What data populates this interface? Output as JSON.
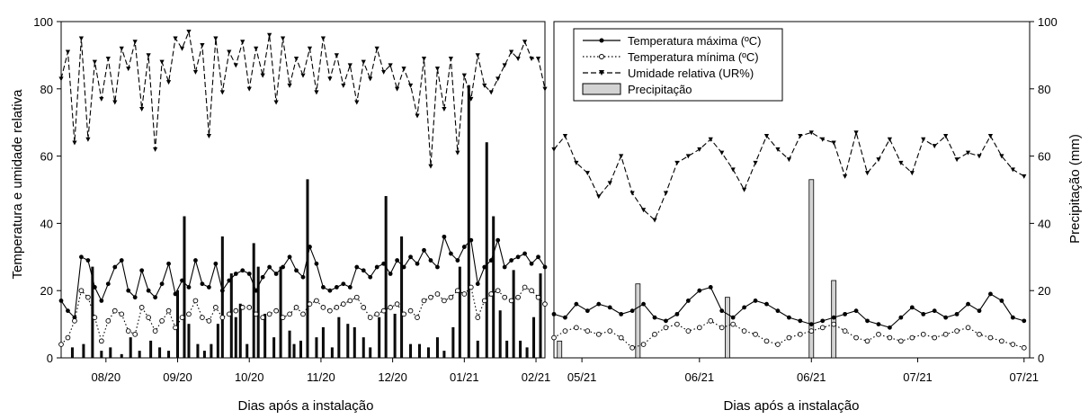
{
  "figure": {
    "left_ylabel": "Temperatura e umidade relativa",
    "right_ylabel": "Precipitação (mm)"
  },
  "legend": {
    "items": [
      {
        "label": "Temperatura máxima (ºC)",
        "key": "tmax"
      },
      {
        "label": "Temperatura mínima (ºC)",
        "key": "tmin"
      },
      {
        "label": "Umidade relativa (UR%)",
        "key": "ur"
      },
      {
        "label": "Precipitação",
        "key": "precip"
      }
    ]
  },
  "chart_data": [
    {
      "type": "line",
      "xlabel": "Dias após a instalação",
      "ylabel": "Temperatura e umidade relativa",
      "ylim": [
        0,
        100
      ],
      "yticks": [
        0,
        20,
        40,
        60,
        80,
        100
      ],
      "xlim": [
        0,
        216
      ],
      "xticks": [
        {
          "x": 20,
          "label": "08/20"
        },
        {
          "x": 52,
          "label": "09/20"
        },
        {
          "x": 84,
          "label": "10/20"
        },
        {
          "x": 116,
          "label": "11/20"
        },
        {
          "x": 148,
          "label": "12/20"
        },
        {
          "x": 180,
          "label": "01/21"
        },
        {
          "x": 212,
          "label": "02/21"
        }
      ],
      "series": [
        {
          "name": "Temperatura máxima (ºC)",
          "key": "tmax",
          "x": [
            0,
            3,
            6,
            9,
            12,
            15,
            18,
            21,
            24,
            27,
            30,
            33,
            36,
            39,
            42,
            45,
            48,
            51,
            54,
            57,
            60,
            63,
            66,
            69,
            72,
            75,
            78,
            81,
            84,
            87,
            90,
            93,
            96,
            99,
            102,
            105,
            108,
            111,
            114,
            117,
            120,
            123,
            126,
            129,
            132,
            135,
            138,
            141,
            144,
            147,
            150,
            153,
            156,
            159,
            162,
            165,
            168,
            171,
            174,
            177,
            180,
            183,
            186,
            189,
            192,
            195,
            198,
            201,
            204,
            207,
            210,
            213,
            216
          ],
          "values": [
            17,
            14,
            12,
            30,
            29,
            21,
            17,
            22,
            27,
            29,
            20,
            18,
            26,
            20,
            18,
            22,
            28,
            19,
            23,
            21,
            29,
            22,
            21,
            28,
            20,
            23,
            25,
            26,
            25,
            20,
            24,
            27,
            25,
            27,
            30,
            26,
            24,
            33,
            28,
            21,
            20,
            21,
            22,
            21,
            27,
            26,
            24,
            27,
            28,
            25,
            29,
            27,
            30,
            28,
            32,
            29,
            27,
            36,
            31,
            29,
            33,
            35,
            22,
            27,
            29,
            35,
            27,
            29,
            30,
            31,
            28,
            30,
            27
          ]
        },
        {
          "name": "Temperatura mínima (ºC)",
          "key": "tmin",
          "x": [
            0,
            3,
            6,
            9,
            12,
            15,
            18,
            21,
            24,
            27,
            30,
            33,
            36,
            39,
            42,
            45,
            48,
            51,
            54,
            57,
            60,
            63,
            66,
            69,
            72,
            75,
            78,
            81,
            84,
            87,
            90,
            93,
            96,
            99,
            102,
            105,
            108,
            111,
            114,
            117,
            120,
            123,
            126,
            129,
            132,
            135,
            138,
            141,
            144,
            147,
            150,
            153,
            156,
            159,
            162,
            165,
            168,
            171,
            174,
            177,
            180,
            183,
            186,
            189,
            192,
            195,
            198,
            201,
            204,
            207,
            210,
            213,
            216
          ],
          "values": [
            4,
            6,
            11,
            20,
            18,
            12,
            5,
            11,
            14,
            13,
            8,
            7,
            15,
            12,
            8,
            11,
            14,
            9,
            12,
            13,
            17,
            12,
            11,
            15,
            12,
            13,
            14,
            15,
            15,
            13,
            12,
            13,
            14,
            12,
            13,
            15,
            13,
            16,
            17,
            15,
            14,
            15,
            16,
            17,
            18,
            15,
            12,
            13,
            14,
            15,
            16,
            13,
            14,
            12,
            17,
            18,
            19,
            17,
            18,
            20,
            19,
            21,
            12,
            17,
            19,
            20,
            18,
            17,
            18,
            21,
            20,
            18,
            16
          ]
        },
        {
          "name": "Umidade relativa (UR%)",
          "key": "ur",
          "x": [
            0,
            3,
            6,
            9,
            12,
            15,
            18,
            21,
            24,
            27,
            30,
            33,
            36,
            39,
            42,
            45,
            48,
            51,
            54,
            57,
            60,
            63,
            66,
            69,
            72,
            75,
            78,
            81,
            84,
            87,
            90,
            93,
            96,
            99,
            102,
            105,
            108,
            111,
            114,
            117,
            120,
            123,
            126,
            129,
            132,
            135,
            138,
            141,
            144,
            147,
            150,
            153,
            156,
            159,
            162,
            165,
            168,
            171,
            174,
            177,
            180,
            183,
            186,
            189,
            192,
            195,
            198,
            201,
            204,
            207,
            210,
            213,
            216
          ],
          "values": [
            83,
            91,
            64,
            95,
            65,
            88,
            77,
            89,
            76,
            92,
            86,
            94,
            74,
            90,
            62,
            88,
            82,
            95,
            92,
            97,
            85,
            93,
            66,
            95,
            79,
            91,
            87,
            94,
            80,
            92,
            84,
            96,
            76,
            95,
            81,
            89,
            84,
            92,
            79,
            95,
            83,
            90,
            81,
            87,
            76,
            88,
            83,
            92,
            85,
            87,
            80,
            86,
            81,
            72,
            89,
            57,
            86,
            74,
            89,
            61,
            84,
            77,
            90,
            81,
            79,
            83,
            87,
            91,
            89,
            94,
            89,
            89,
            80
          ]
        }
      ],
      "bars": {
        "name": "Precipitação",
        "key": "precip",
        "x": [
          5,
          10,
          14,
          18,
          22,
          27,
          31,
          35,
          40,
          44,
          48,
          52,
          55,
          57,
          61,
          64,
          67,
          70,
          72,
          76,
          78,
          80,
          83,
          86,
          88,
          91,
          95,
          98,
          102,
          104,
          107,
          110,
          114,
          117,
          121,
          124,
          128,
          131,
          135,
          138,
          142,
          145,
          149,
          152,
          156,
          160,
          164,
          168,
          171,
          175,
          178,
          182,
          186,
          190,
          193,
          196,
          199,
          202,
          205,
          208,
          211,
          214
        ],
        "values": [
          3,
          4,
          27,
          2,
          3,
          1,
          6,
          2,
          5,
          3,
          2,
          20,
          42,
          10,
          4,
          2,
          4,
          10,
          36,
          25,
          12,
          16,
          4,
          34,
          27,
          13,
          6,
          27,
          8,
          4,
          5,
          53,
          6,
          9,
          3,
          12,
          10,
          9,
          6,
          3,
          12,
          48,
          13,
          36,
          4,
          4,
          3,
          6,
          2,
          9,
          27,
          81,
          5,
          64,
          42,
          14,
          5,
          26,
          5,
          3,
          12,
          25
        ]
      }
    },
    {
      "type": "line",
      "xlabel": "Dias após a instalação",
      "ylabel": "Precipitação (mm)",
      "ylim": [
        0,
        100
      ],
      "yticks": [
        0,
        20,
        40,
        60,
        80,
        100
      ],
      "xlim": [
        0,
        85
      ],
      "xticks": [
        {
          "x": 5,
          "label": "05/21"
        },
        {
          "x": 26,
          "label": "06/21"
        },
        {
          "x": 46,
          "label": "06/21"
        },
        {
          "x": 65,
          "label": "07/21"
        },
        {
          "x": 84,
          "label": "07/21"
        }
      ],
      "series": [
        {
          "name": "Temperatura máxima (ºC)",
          "key": "tmax",
          "x": [
            0,
            2,
            4,
            6,
            8,
            10,
            12,
            14,
            16,
            18,
            20,
            22,
            24,
            26,
            28,
            30,
            32,
            34,
            36,
            38,
            40,
            42,
            44,
            46,
            48,
            50,
            52,
            54,
            56,
            58,
            60,
            62,
            64,
            66,
            68,
            70,
            72,
            74,
            76,
            78,
            80,
            82,
            84
          ],
          "values": [
            13,
            12,
            16,
            14,
            16,
            15,
            13,
            14,
            16,
            12,
            11,
            13,
            17,
            20,
            21,
            14,
            12,
            15,
            17,
            16,
            14,
            12,
            11,
            10,
            11,
            12,
            13,
            14,
            11,
            10,
            9,
            12,
            15,
            13,
            14,
            12,
            13,
            16,
            14,
            19,
            17,
            12,
            11
          ]
        },
        {
          "name": "Temperatura mínima (ºC)",
          "key": "tmin",
          "x": [
            0,
            2,
            4,
            6,
            8,
            10,
            12,
            14,
            16,
            18,
            20,
            22,
            24,
            26,
            28,
            30,
            32,
            34,
            36,
            38,
            40,
            42,
            44,
            46,
            48,
            50,
            52,
            54,
            56,
            58,
            60,
            62,
            64,
            66,
            68,
            70,
            72,
            74,
            76,
            78,
            80,
            82,
            84
          ],
          "values": [
            6,
            8,
            9,
            8,
            7,
            8,
            6,
            3,
            4,
            7,
            9,
            10,
            8,
            9,
            11,
            9,
            10,
            8,
            7,
            5,
            4,
            6,
            7,
            8,
            9,
            10,
            8,
            6,
            5,
            7,
            6,
            5,
            6,
            7,
            6,
            7,
            8,
            9,
            7,
            6,
            5,
            4,
            3
          ]
        },
        {
          "name": "Umidade relativa (UR%)",
          "key": "ur",
          "x": [
            0,
            2,
            4,
            6,
            8,
            10,
            12,
            14,
            16,
            18,
            20,
            22,
            24,
            26,
            28,
            30,
            32,
            34,
            36,
            38,
            40,
            42,
            44,
            46,
            48,
            50,
            52,
            54,
            56,
            58,
            60,
            62,
            64,
            66,
            68,
            70,
            72,
            74,
            76,
            78,
            80,
            82,
            84
          ],
          "values": [
            62,
            66,
            58,
            55,
            48,
            52,
            60,
            49,
            44,
            41,
            49,
            58,
            60,
            62,
            65,
            61,
            56,
            50,
            58,
            66,
            62,
            59,
            66,
            67,
            65,
            64,
            54,
            67,
            55,
            59,
            65,
            58,
            55,
            65,
            63,
            66,
            59,
            61,
            60,
            66,
            60,
            56,
            54
          ]
        }
      ],
      "bars": {
        "name": "Precipitação",
        "key": "precip",
        "x": [
          1,
          15,
          31,
          46,
          50
        ],
        "values": [
          5,
          22,
          18,
          53,
          23
        ]
      }
    }
  ]
}
